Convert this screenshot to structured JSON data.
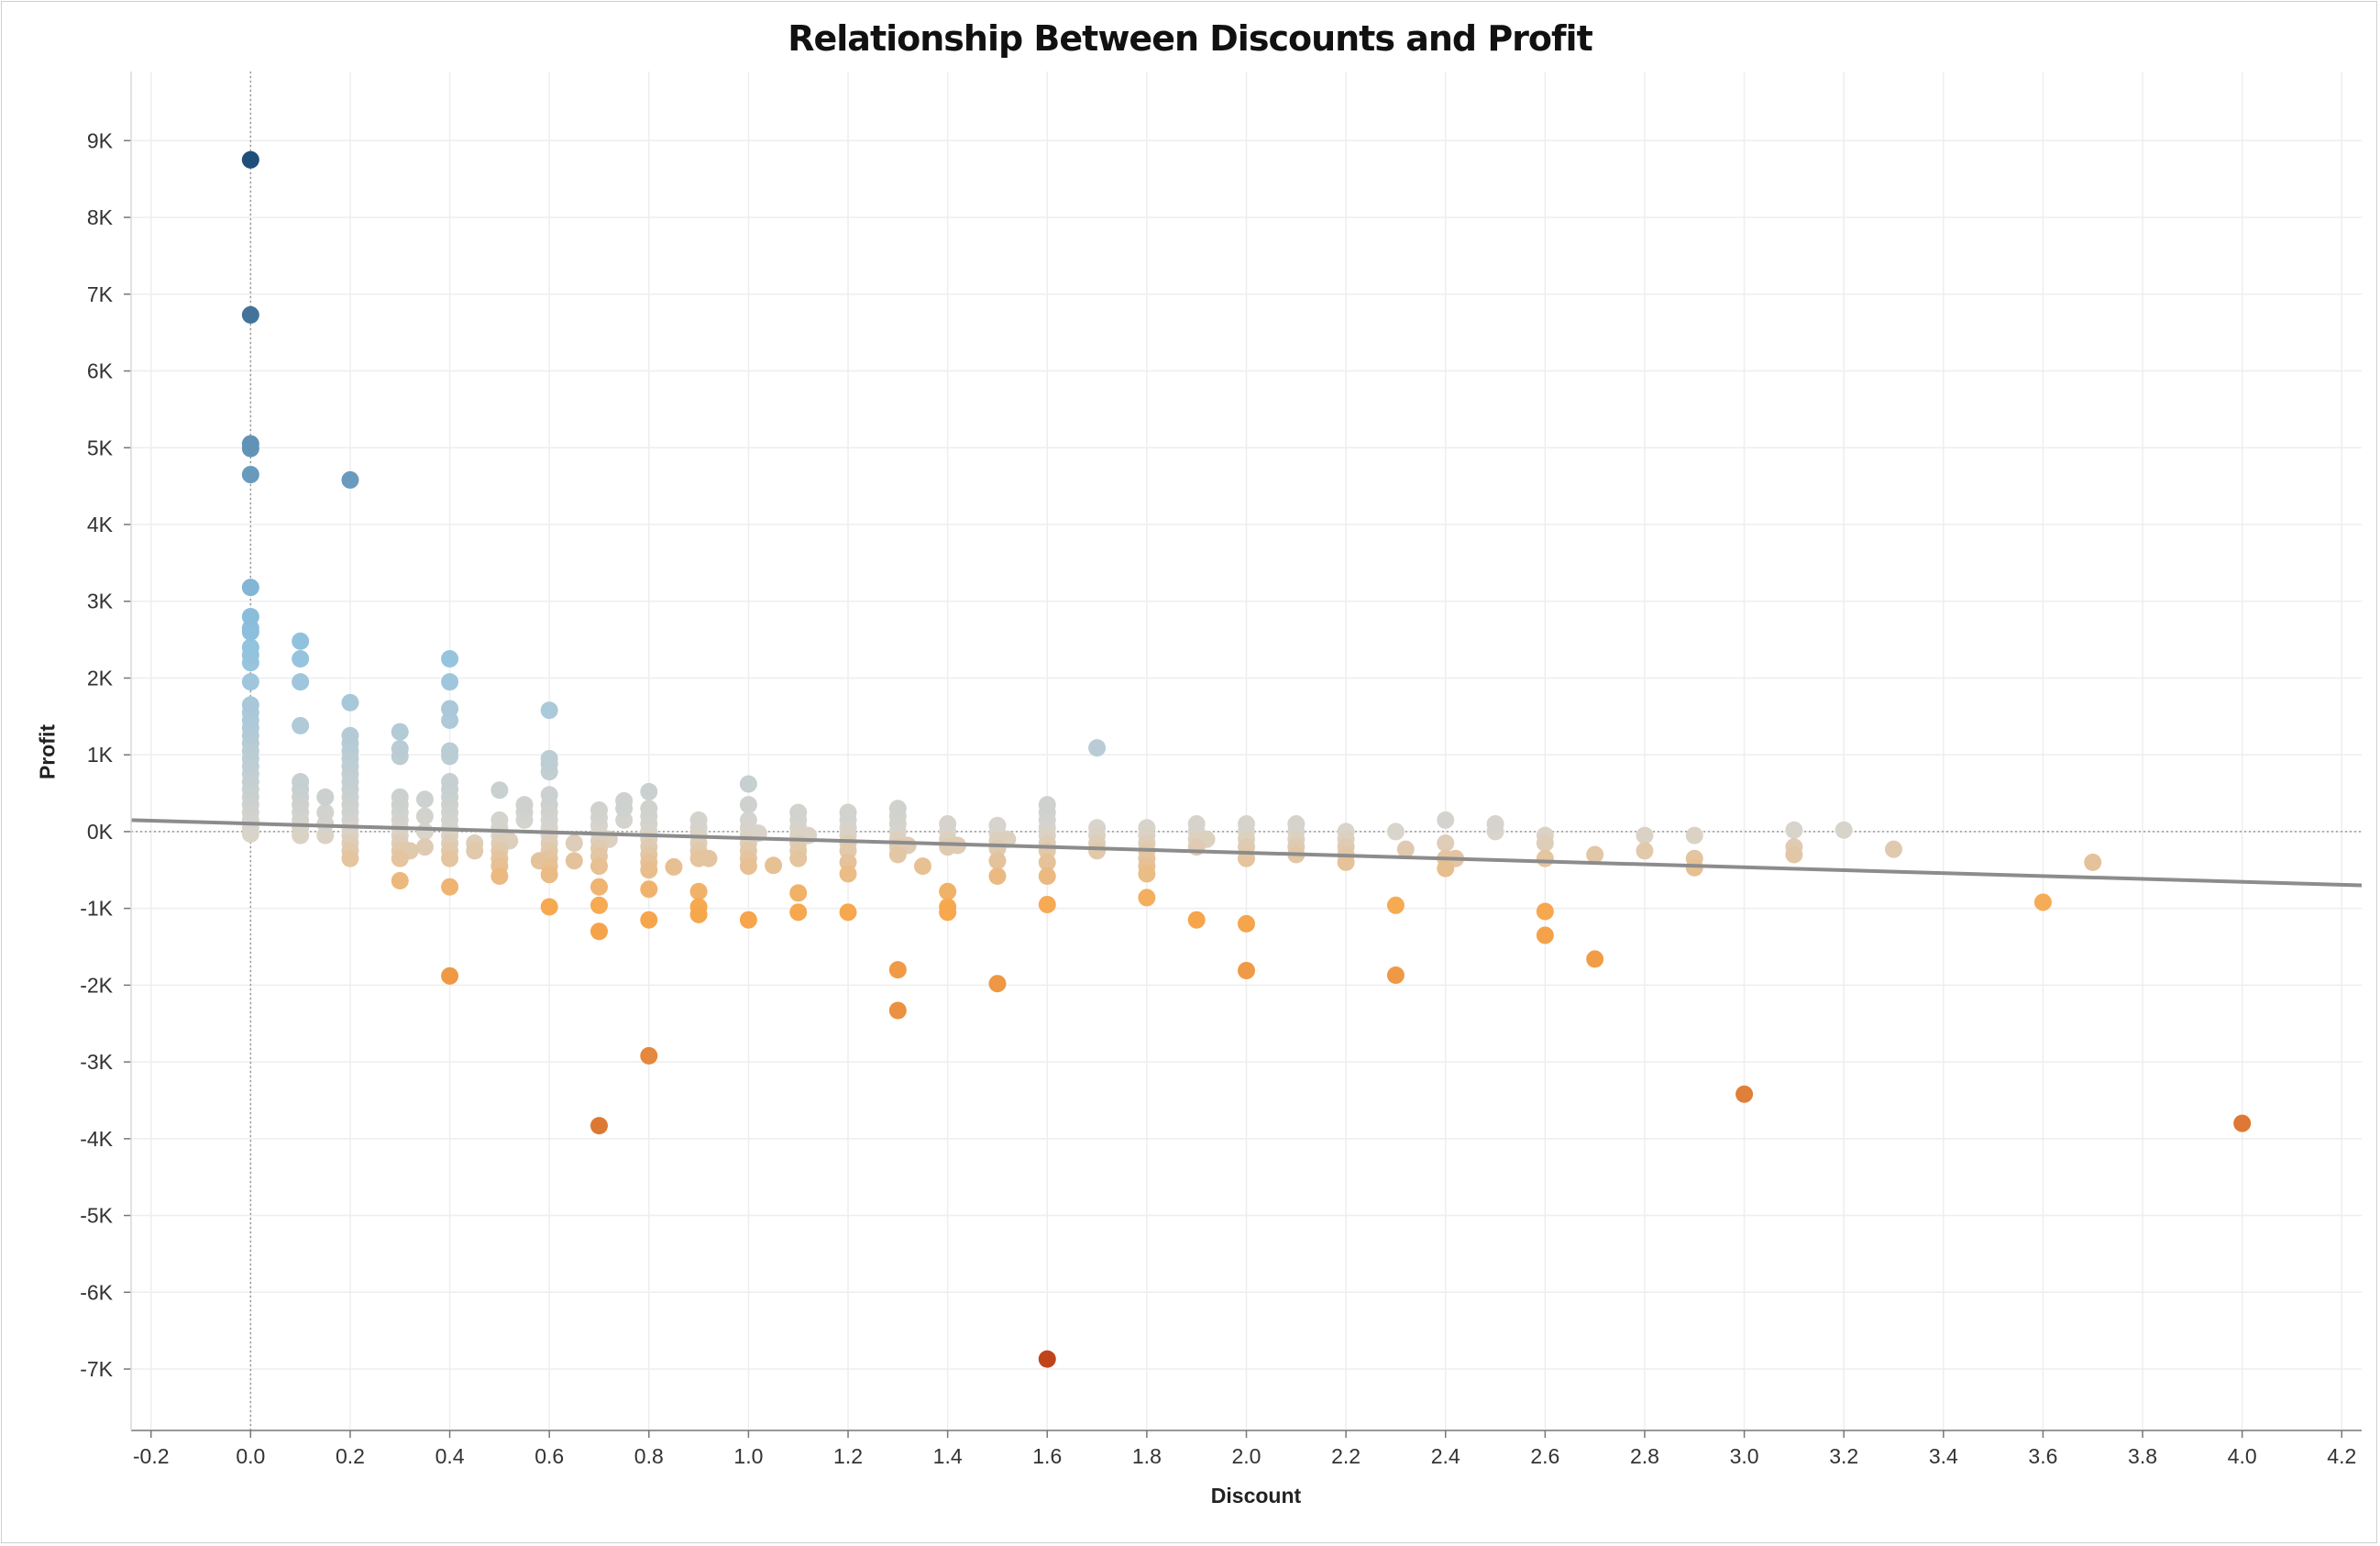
{
  "chart_data": {
    "type": "scatter",
    "title": "Relationship Between Discounts and Profit",
    "xlabel": "Discount",
    "ylabel": "Profit",
    "xlim": [
      -0.24,
      4.24
    ],
    "ylim": [
      -7800,
      9900
    ],
    "x_ticks": [
      {
        "value": -0.2,
        "label": "-0.2"
      },
      {
        "value": 0.0,
        "label": "0.0"
      },
      {
        "value": 0.2,
        "label": "0.2"
      },
      {
        "value": 0.4,
        "label": "0.4"
      },
      {
        "value": 0.6,
        "label": "0.6"
      },
      {
        "value": 0.8,
        "label": "0.8"
      },
      {
        "value": 1.0,
        "label": "1.0"
      },
      {
        "value": 1.2,
        "label": "1.2"
      },
      {
        "value": 1.4,
        "label": "1.4"
      },
      {
        "value": 1.6,
        "label": "1.6"
      },
      {
        "value": 1.8,
        "label": "1.8"
      },
      {
        "value": 2.0,
        "label": "2.0"
      },
      {
        "value": 2.2,
        "label": "2.2"
      },
      {
        "value": 2.4,
        "label": "2.4"
      },
      {
        "value": 2.6,
        "label": "2.6"
      },
      {
        "value": 2.8,
        "label": "2.8"
      },
      {
        "value": 3.0,
        "label": "3.0"
      },
      {
        "value": 3.2,
        "label": "3.2"
      },
      {
        "value": 3.4,
        "label": "3.4"
      },
      {
        "value": 3.6,
        "label": "3.6"
      },
      {
        "value": 3.8,
        "label": "3.8"
      },
      {
        "value": 4.0,
        "label": "4.0"
      },
      {
        "value": 4.2,
        "label": "4.2"
      }
    ],
    "y_ticks": [
      {
        "value": 9000,
        "label": "9K"
      },
      {
        "value": 8000,
        "label": "8K"
      },
      {
        "value": 7000,
        "label": "7K"
      },
      {
        "value": 6000,
        "label": "6K"
      },
      {
        "value": 5000,
        "label": "5K"
      },
      {
        "value": 4000,
        "label": "4K"
      },
      {
        "value": 3000,
        "label": "3K"
      },
      {
        "value": 2000,
        "label": "2K"
      },
      {
        "value": 1000,
        "label": "1K"
      },
      {
        "value": 0,
        "label": "0K"
      },
      {
        "value": -1000,
        "label": "-1K"
      },
      {
        "value": -2000,
        "label": "-2K"
      },
      {
        "value": -3000,
        "label": "-3K"
      },
      {
        "value": -4000,
        "label": "-4K"
      },
      {
        "value": -5000,
        "label": "-5K"
      },
      {
        "value": -6000,
        "label": "-6K"
      },
      {
        "value": -7000,
        "label": "-7K"
      }
    ],
    "grid": true,
    "legend": "none",
    "color_scale": {
      "negative_extreme": "#c0441a",
      "negative_mid": "#f7a84d",
      "neutral": "#d9d4cc",
      "positive_mid": "#8fc2e0",
      "positive_extreme": "#1f4e79"
    },
    "trend_line": {
      "color": "#8c8c8c",
      "points": [
        [
          -0.24,
          150
        ],
        [
          4.24,
          -700
        ]
      ]
    },
    "reference_lines": {
      "zero_x": 0,
      "zero_y": 0
    },
    "columns": [
      {
        "x": 0.0,
        "y": [
          8750,
          6730,
          5050,
          4990,
          4650,
          3180,
          2800,
          2650,
          2600,
          2400,
          2300,
          2200,
          1950,
          1650,
          1550,
          1450,
          1350,
          1250,
          1150,
          1050,
          950,
          850,
          750,
          650,
          550,
          450,
          350,
          250,
          150,
          50,
          -30
        ]
      },
      {
        "x": 0.1,
        "y": [
          2480,
          2250,
          1950,
          1380,
          650,
          550,
          450,
          350,
          250,
          150,
          50,
          -50
        ]
      },
      {
        "x": 0.15,
        "y": [
          450,
          250,
          100,
          -50
        ]
      },
      {
        "x": 0.2,
        "y": [
          4580,
          1680,
          1250,
          1150,
          1050,
          950,
          850,
          750,
          650,
          550,
          450,
          350,
          250,
          150,
          50,
          -50,
          -150,
          -250,
          -350
        ]
      },
      {
        "x": 0.3,
        "y": [
          1300,
          1080,
          980,
          450,
          350,
          250,
          150,
          50,
          -50,
          -150,
          -250,
          -350,
          -640
        ]
      },
      {
        "x": 0.35,
        "y": [
          420,
          200,
          0,
          -200
        ]
      },
      {
        "x": 0.4,
        "y": [
          2250,
          1950,
          1600,
          1450,
          1050,
          980,
          650,
          550,
          450,
          350,
          250,
          150,
          50,
          -50,
          -150,
          -250,
          -350,
          -720,
          -1880
        ]
      },
      {
        "x": 0.45,
        "y": [
          -150,
          -250
        ]
      },
      {
        "x": 0.5,
        "y": [
          540,
          150,
          50,
          -50,
          -150,
          -250,
          -350,
          -450,
          -580
        ]
      },
      {
        "x": 0.55,
        "y": [
          350,
          250,
          150
        ]
      },
      {
        "x": 0.6,
        "y": [
          1580,
          950,
          880,
          780,
          480,
          350,
          250,
          150,
          50,
          -50,
          -150,
          -250,
          -350,
          -450,
          -560,
          -980
        ]
      },
      {
        "x": 0.65,
        "y": [
          -150,
          -380
        ]
      },
      {
        "x": 0.7,
        "y": [
          280,
          180,
          80,
          -20,
          -120,
          -220,
          -320,
          -450,
          -720,
          -960,
          -1300,
          -3830
        ]
      },
      {
        "x": 0.75,
        "y": [
          400,
          300,
          150
        ]
      },
      {
        "x": 0.8,
        "y": [
          520,
          300,
          200,
          100,
          0,
          -100,
          -200,
          -300,
          -400,
          -500,
          -750,
          -1150,
          -2920
        ]
      },
      {
        "x": 0.85,
        "y": [
          -460
        ]
      },
      {
        "x": 0.9,
        "y": [
          150,
          50,
          -50,
          -150,
          -250,
          -350,
          -780,
          -980,
          -1080
        ]
      },
      {
        "x": 1.0,
        "y": [
          620,
          350,
          150,
          50,
          -50,
          -150,
          -250,
          -350,
          -450,
          -1150
        ]
      },
      {
        "x": 1.05,
        "y": [
          -440
        ]
      },
      {
        "x": 1.1,
        "y": [
          250,
          150,
          50,
          -50,
          -150,
          -250,
          -350,
          -800,
          -1050
        ]
      },
      {
        "x": 1.2,
        "y": [
          250,
          150,
          50,
          -50,
          -150,
          -250,
          -400,
          -550,
          -1050
        ]
      },
      {
        "x": 1.3,
        "y": [
          300,
          200,
          100,
          0,
          -100,
          -200,
          -300,
          -1800,
          -2330
        ]
      },
      {
        "x": 1.35,
        "y": [
          -450
        ]
      },
      {
        "x": 1.4,
        "y": [
          100,
          0,
          -100,
          -200,
          -780,
          -980,
          -1050
        ]
      },
      {
        "x": 1.5,
        "y": [
          80,
          -20,
          -120,
          -220,
          -380,
          -580,
          -1980
        ]
      },
      {
        "x": 1.6,
        "y": [
          350,
          250,
          150,
          50,
          -50,
          -150,
          -250,
          -400,
          -580,
          -950,
          -6870
        ]
      },
      {
        "x": 1.7,
        "y": [
          1090,
          50,
          -50,
          -150,
          -250
        ]
      },
      {
        "x": 1.8,
        "y": [
          50,
          -50,
          -150,
          -250,
          -350,
          -450,
          -550,
          -860
        ]
      },
      {
        "x": 1.9,
        "y": [
          100,
          0,
          -100,
          -200,
          -1150
        ]
      },
      {
        "x": 2.0,
        "y": [
          100,
          0,
          -100,
          -200,
          -350,
          -1200,
          -1810
        ]
      },
      {
        "x": 2.1,
        "y": [
          100,
          0,
          -100,
          -200,
          -300
        ]
      },
      {
        "x": 2.2,
        "y": [
          0,
          -100,
          -200,
          -300,
          -400
        ]
      },
      {
        "x": 2.3,
        "y": [
          0,
          -960,
          -1870
        ]
      },
      {
        "x": 2.4,
        "y": [
          150,
          -150,
          -350,
          -480
        ]
      },
      {
        "x": 2.5,
        "y": [
          100,
          0
        ]
      },
      {
        "x": 2.6,
        "y": [
          -50,
          -150,
          -350,
          -1040,
          -1350
        ]
      },
      {
        "x": 2.7,
        "y": [
          -300,
          -1660
        ]
      },
      {
        "x": 2.8,
        "y": [
          -50,
          -250
        ]
      },
      {
        "x": 2.9,
        "y": [
          -50,
          -350,
          -470
        ]
      },
      {
        "x": 3.0,
        "y": [
          -3420
        ]
      },
      {
        "x": 3.1,
        "y": [
          20,
          -200,
          -300
        ]
      },
      {
        "x": 3.2,
        "y": [
          20
        ]
      },
      {
        "x": 3.3,
        "y": [
          -230
        ]
      },
      {
        "x": 3.6,
        "y": [
          -920
        ]
      },
      {
        "x": 3.7,
        "y": [
          -400
        ]
      },
      {
        "x": 4.0,
        "y": [
          -3800
        ]
      }
    ],
    "extra_points": [
      {
        "x": 0.32,
        "y": -250
      },
      {
        "x": 0.52,
        "y": -120
      },
      {
        "x": 0.58,
        "y": -380
      },
      {
        "x": 0.72,
        "y": -100
      },
      {
        "x": 0.92,
        "y": -350
      },
      {
        "x": 1.02,
        "y": -20
      },
      {
        "x": 1.12,
        "y": -50
      },
      {
        "x": 1.32,
        "y": -180
      },
      {
        "x": 1.42,
        "y": -180
      },
      {
        "x": 1.52,
        "y": -100
      },
      {
        "x": 1.92,
        "y": -100
      },
      {
        "x": 2.32,
        "y": -230
      },
      {
        "x": 2.42,
        "y": -350
      }
    ]
  }
}
